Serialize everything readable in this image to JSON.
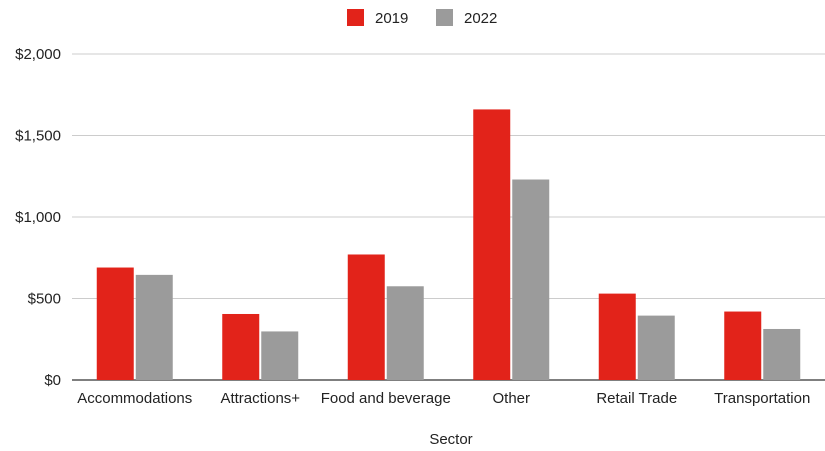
{
  "chart_data": {
    "type": "bar",
    "title": "",
    "xlabel": "Sector",
    "ylabel": "",
    "categories": [
      "Accommodations",
      "Attractions+",
      "Food and beverage",
      "Other",
      "Retail Trade",
      "Transportation"
    ],
    "series": [
      {
        "name": "2019",
        "color": "#e2231a",
        "values": [
          690,
          405,
          770,
          1660,
          530,
          420
        ]
      },
      {
        "name": "2022",
        "color": "#9b9b9b",
        "values": [
          645,
          298,
          575,
          1230,
          395,
          313
        ]
      }
    ],
    "ylim": [
      0,
      2000
    ],
    "yticks": [
      0,
      500,
      1000,
      1500,
      2000
    ],
    "ytick_labels": [
      "$0",
      "$500",
      "$1,000",
      "$1,500",
      "$2,000"
    ],
    "grid": true,
    "legend_position": "top-center"
  }
}
